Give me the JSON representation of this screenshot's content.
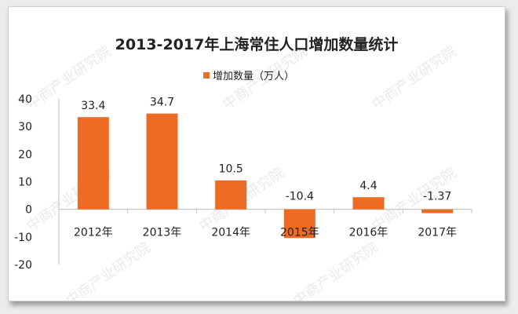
{
  "chart_data": {
    "type": "bar",
    "title": "2013-2017年上海常住人口增加数量统计",
    "categories": [
      "2012年",
      "2013年",
      "2014年",
      "2015年",
      "2016年",
      "2017年"
    ],
    "series": [
      {
        "name": "增加数量（万人）",
        "values": [
          33.4,
          34.7,
          10.5,
          -10.4,
          4.4,
          -1.37
        ],
        "labels": [
          "33.4",
          "34.7",
          "10.5",
          "-10.4",
          "4.4",
          "-1.37"
        ]
      }
    ],
    "y_ticks": [
      "-20",
      "-10",
      "0",
      "10",
      "20",
      "30",
      "40"
    ],
    "ylim": [
      -20,
      40
    ],
    "grid": false,
    "legend_position": "top-center",
    "colors": {
      "bar": "#ee6b24",
      "text": "#222222",
      "axis": "#bdbdbd",
      "watermark": "#d8d8d8"
    },
    "watermark": "中商产业研究院"
  }
}
